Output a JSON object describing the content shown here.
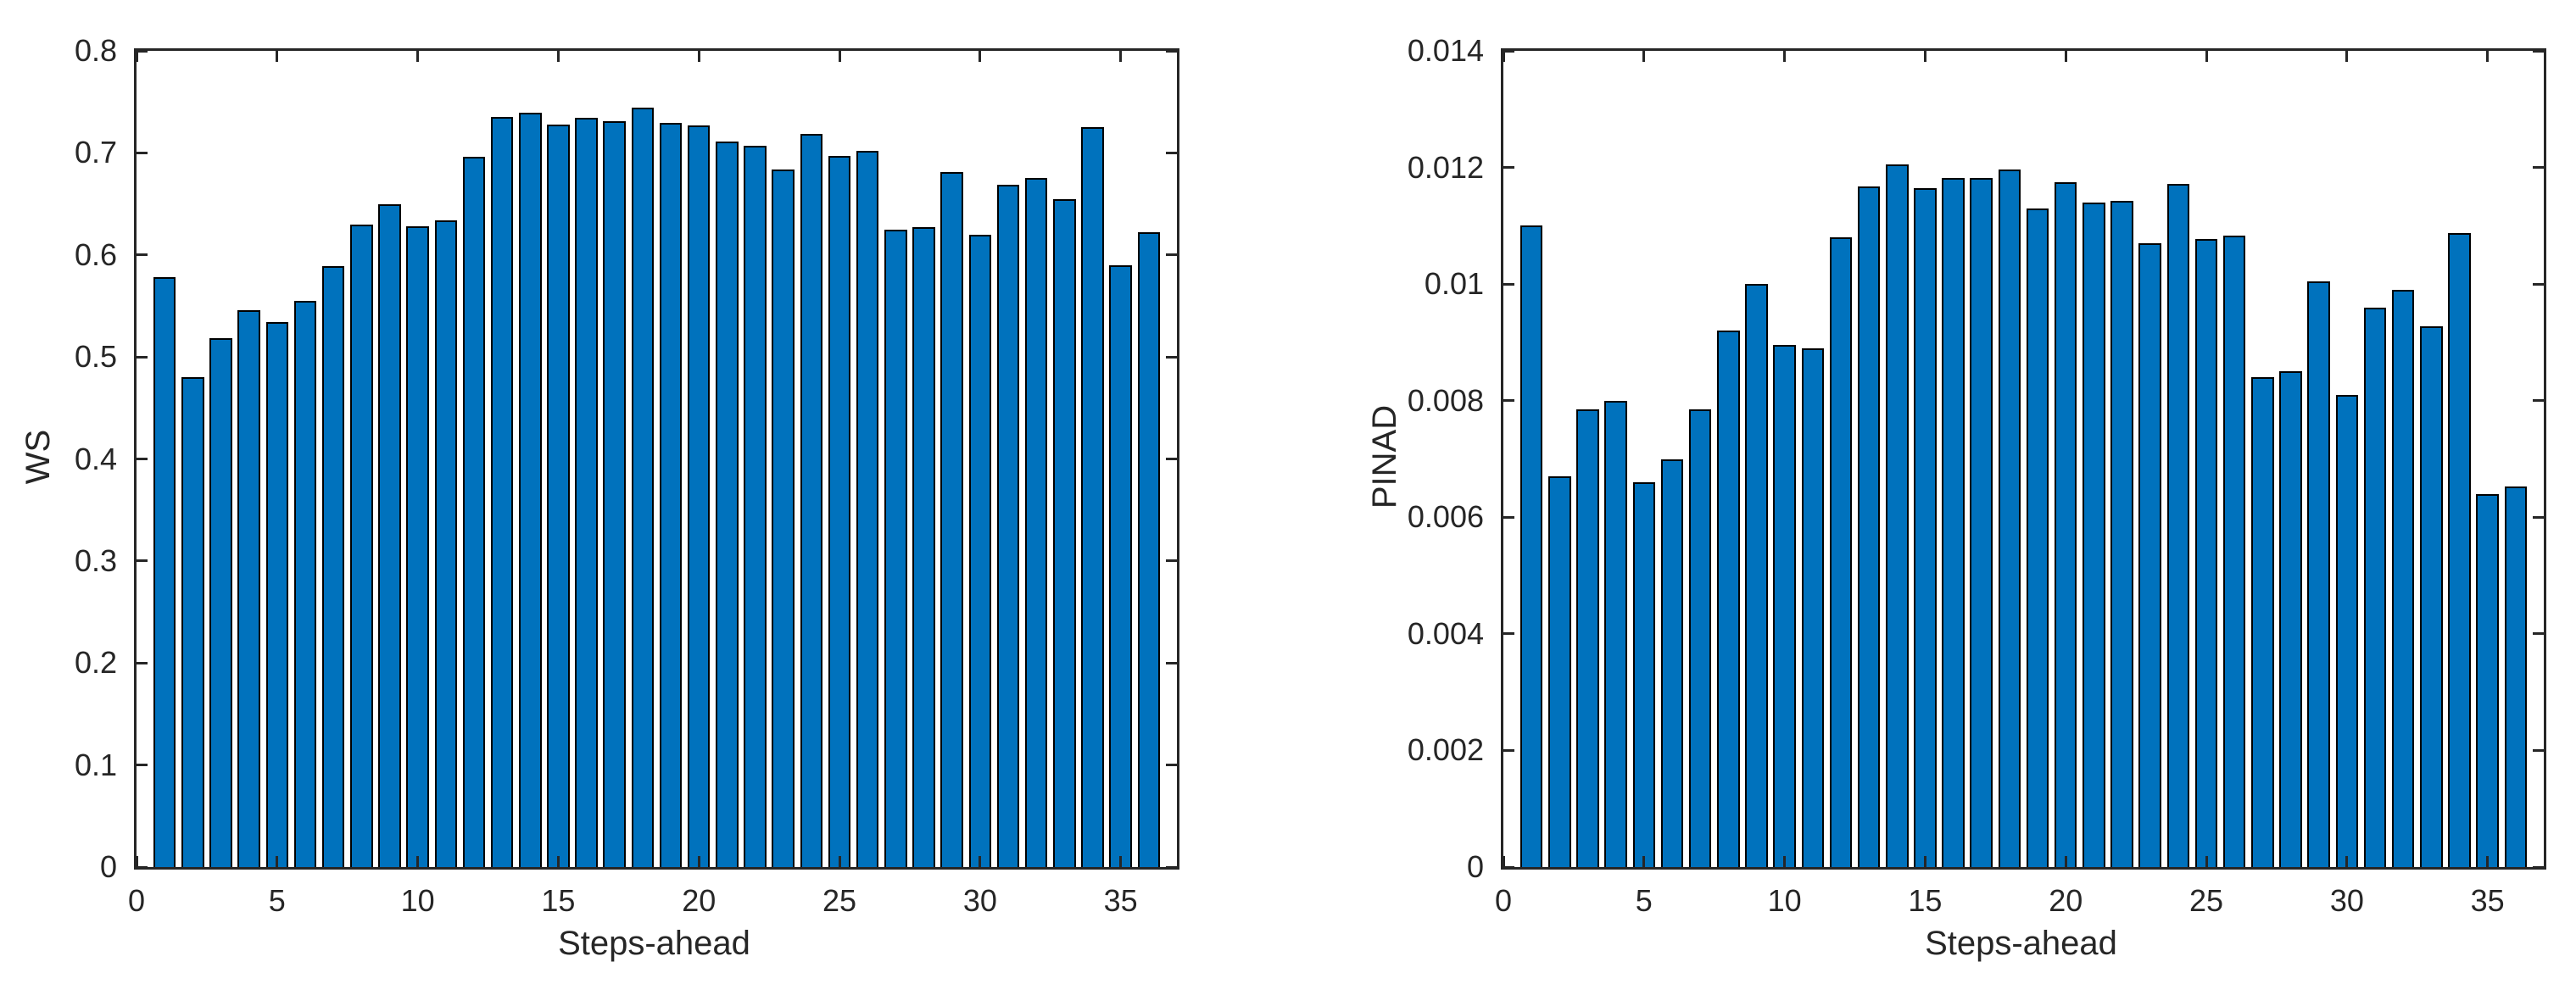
{
  "figure": {
    "background_color": "#ffffff",
    "bar_fill_color": "#0072BD",
    "bar_edge_color": "#000000",
    "axis_color": "#262626"
  },
  "chart_data": [
    {
      "type": "bar",
      "title": "",
      "xlabel": "Steps-ahead",
      "ylabel": "WS",
      "xlim": [
        0,
        37
      ],
      "ylim": [
        0,
        0.8
      ],
      "grid": false,
      "legend_position": "none",
      "bar_width_units": 0.8,
      "xticks": [
        0,
        5,
        10,
        15,
        20,
        25,
        30,
        35
      ],
      "xtick_labels": [
        "0",
        "5",
        "10",
        "15",
        "20",
        "25",
        "30",
        "35"
      ],
      "yticks": [
        0,
        0.1,
        0.2,
        0.3,
        0.4,
        0.5,
        0.6,
        0.7,
        0.8
      ],
      "ytick_labels": [
        "0",
        "0.1",
        "0.2",
        "0.3",
        "0.4",
        "0.5",
        "0.6",
        "0.7",
        "0.8"
      ],
      "x": [
        1,
        2,
        3,
        4,
        5,
        6,
        7,
        8,
        9,
        10,
        11,
        12,
        13,
        14,
        15,
        16,
        17,
        18,
        19,
        20,
        21,
        22,
        23,
        24,
        25,
        26,
        27,
        28,
        29,
        30,
        31,
        32,
        33,
        34,
        35,
        36
      ],
      "values": [
        0.578,
        0.48,
        0.518,
        0.546,
        0.534,
        0.555,
        0.589,
        0.63,
        0.65,
        0.628,
        0.634,
        0.696,
        0.735,
        0.739,
        0.728,
        0.734,
        0.731,
        0.744,
        0.729,
        0.727,
        0.711,
        0.707,
        0.684,
        0.719,
        0.697,
        0.702,
        0.625,
        0.627,
        0.681,
        0.62,
        0.669,
        0.675,
        0.655,
        0.725,
        0.59,
        0.622
      ]
    },
    {
      "type": "bar",
      "title": "",
      "xlabel": "Steps-ahead",
      "ylabel": "PINAD",
      "xlim": [
        0,
        37
      ],
      "ylim": [
        0,
        0.014
      ],
      "grid": false,
      "legend_position": "none",
      "bar_width_units": 0.8,
      "xticks": [
        0,
        5,
        10,
        15,
        20,
        25,
        30,
        35
      ],
      "xtick_labels": [
        "0",
        "5",
        "10",
        "15",
        "20",
        "25",
        "30",
        "35"
      ],
      "yticks": [
        0,
        0.002,
        0.004,
        0.006,
        0.008,
        0.01,
        0.012,
        0.014
      ],
      "ytick_labels": [
        "0",
        "0.002",
        "0.004",
        "0.006",
        "0.008",
        "0.01",
        "0.012",
        "0.014"
      ],
      "x": [
        1,
        2,
        3,
        4,
        5,
        6,
        7,
        8,
        9,
        10,
        11,
        12,
        13,
        14,
        15,
        16,
        17,
        18,
        19,
        20,
        21,
        22,
        23,
        24,
        25,
        26,
        27,
        28,
        29,
        30,
        31,
        32,
        33,
        34,
        35,
        36
      ],
      "values": [
        0.011,
        0.0067,
        0.00785,
        0.008,
        0.0066,
        0.007,
        0.00785,
        0.0092,
        0.01,
        0.00895,
        0.0089,
        0.0108,
        0.01168,
        0.01205,
        0.01165,
        0.01182,
        0.01182,
        0.01196,
        0.0113,
        0.01175,
        0.0114,
        0.01142,
        0.0107,
        0.01172,
        0.01077,
        0.01083,
        0.0084,
        0.0085,
        0.01005,
        0.0081,
        0.0096,
        0.0099,
        0.00928,
        0.01088,
        0.0064,
        0.00653
      ]
    }
  ]
}
